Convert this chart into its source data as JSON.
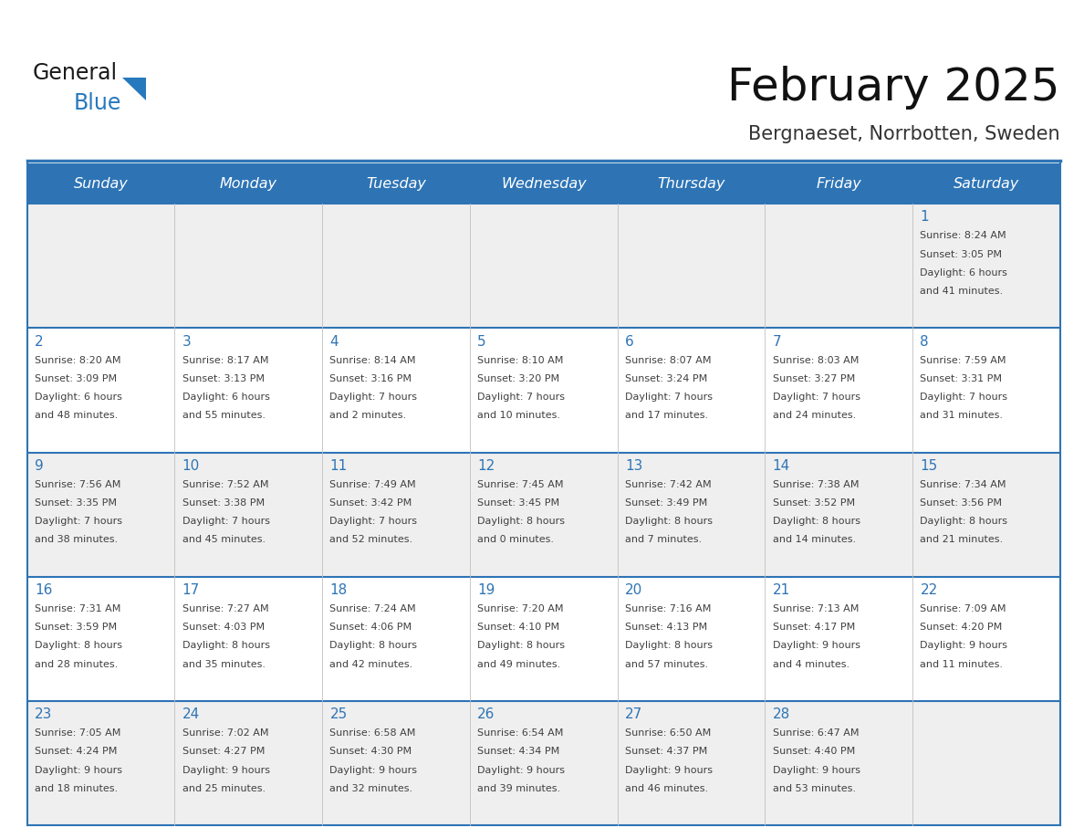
{
  "title": "February 2025",
  "subtitle": "Bergnaeset, Norrbotten, Sweden",
  "header_bg": "#2E74B5",
  "header_text_color": "#FFFFFF",
  "cell_bg_white": "#FFFFFF",
  "cell_bg_gray": "#EFEFEF",
  "row_line_color": "#2E74B5",
  "day_number_color": "#2E74B5",
  "info_text_color": "#404040",
  "separator_color": "#2E74B5",
  "days_of_week": [
    "Sunday",
    "Monday",
    "Tuesday",
    "Wednesday",
    "Thursday",
    "Friday",
    "Saturday"
  ],
  "weeks": [
    [
      {
        "day": 0,
        "info": ""
      },
      {
        "day": 0,
        "info": ""
      },
      {
        "day": 0,
        "info": ""
      },
      {
        "day": 0,
        "info": ""
      },
      {
        "day": 0,
        "info": ""
      },
      {
        "day": 0,
        "info": ""
      },
      {
        "day": 1,
        "info": "Sunrise: 8:24 AM\nSunset: 3:05 PM\nDaylight: 6 hours\nand 41 minutes."
      }
    ],
    [
      {
        "day": 2,
        "info": "Sunrise: 8:20 AM\nSunset: 3:09 PM\nDaylight: 6 hours\nand 48 minutes."
      },
      {
        "day": 3,
        "info": "Sunrise: 8:17 AM\nSunset: 3:13 PM\nDaylight: 6 hours\nand 55 minutes."
      },
      {
        "day": 4,
        "info": "Sunrise: 8:14 AM\nSunset: 3:16 PM\nDaylight: 7 hours\nand 2 minutes."
      },
      {
        "day": 5,
        "info": "Sunrise: 8:10 AM\nSunset: 3:20 PM\nDaylight: 7 hours\nand 10 minutes."
      },
      {
        "day": 6,
        "info": "Sunrise: 8:07 AM\nSunset: 3:24 PM\nDaylight: 7 hours\nand 17 minutes."
      },
      {
        "day": 7,
        "info": "Sunrise: 8:03 AM\nSunset: 3:27 PM\nDaylight: 7 hours\nand 24 minutes."
      },
      {
        "day": 8,
        "info": "Sunrise: 7:59 AM\nSunset: 3:31 PM\nDaylight: 7 hours\nand 31 minutes."
      }
    ],
    [
      {
        "day": 9,
        "info": "Sunrise: 7:56 AM\nSunset: 3:35 PM\nDaylight: 7 hours\nand 38 minutes."
      },
      {
        "day": 10,
        "info": "Sunrise: 7:52 AM\nSunset: 3:38 PM\nDaylight: 7 hours\nand 45 minutes."
      },
      {
        "day": 11,
        "info": "Sunrise: 7:49 AM\nSunset: 3:42 PM\nDaylight: 7 hours\nand 52 minutes."
      },
      {
        "day": 12,
        "info": "Sunrise: 7:45 AM\nSunset: 3:45 PM\nDaylight: 8 hours\nand 0 minutes."
      },
      {
        "day": 13,
        "info": "Sunrise: 7:42 AM\nSunset: 3:49 PM\nDaylight: 8 hours\nand 7 minutes."
      },
      {
        "day": 14,
        "info": "Sunrise: 7:38 AM\nSunset: 3:52 PM\nDaylight: 8 hours\nand 14 minutes."
      },
      {
        "day": 15,
        "info": "Sunrise: 7:34 AM\nSunset: 3:56 PM\nDaylight: 8 hours\nand 21 minutes."
      }
    ],
    [
      {
        "day": 16,
        "info": "Sunrise: 7:31 AM\nSunset: 3:59 PM\nDaylight: 8 hours\nand 28 minutes."
      },
      {
        "day": 17,
        "info": "Sunrise: 7:27 AM\nSunset: 4:03 PM\nDaylight: 8 hours\nand 35 minutes."
      },
      {
        "day": 18,
        "info": "Sunrise: 7:24 AM\nSunset: 4:06 PM\nDaylight: 8 hours\nand 42 minutes."
      },
      {
        "day": 19,
        "info": "Sunrise: 7:20 AM\nSunset: 4:10 PM\nDaylight: 8 hours\nand 49 minutes."
      },
      {
        "day": 20,
        "info": "Sunrise: 7:16 AM\nSunset: 4:13 PM\nDaylight: 8 hours\nand 57 minutes."
      },
      {
        "day": 21,
        "info": "Sunrise: 7:13 AM\nSunset: 4:17 PM\nDaylight: 9 hours\nand 4 minutes."
      },
      {
        "day": 22,
        "info": "Sunrise: 7:09 AM\nSunset: 4:20 PM\nDaylight: 9 hours\nand 11 minutes."
      }
    ],
    [
      {
        "day": 23,
        "info": "Sunrise: 7:05 AM\nSunset: 4:24 PM\nDaylight: 9 hours\nand 18 minutes."
      },
      {
        "day": 24,
        "info": "Sunrise: 7:02 AM\nSunset: 4:27 PM\nDaylight: 9 hours\nand 25 minutes."
      },
      {
        "day": 25,
        "info": "Sunrise: 6:58 AM\nSunset: 4:30 PM\nDaylight: 9 hours\nand 32 minutes."
      },
      {
        "day": 26,
        "info": "Sunrise: 6:54 AM\nSunset: 4:34 PM\nDaylight: 9 hours\nand 39 minutes."
      },
      {
        "day": 27,
        "info": "Sunrise: 6:50 AM\nSunset: 4:37 PM\nDaylight: 9 hours\nand 46 minutes."
      },
      {
        "day": 28,
        "info": "Sunrise: 6:47 AM\nSunset: 4:40 PM\nDaylight: 9 hours\nand 53 minutes."
      },
      {
        "day": 0,
        "info": ""
      }
    ]
  ],
  "logo_general_color": "#1a1a1a",
  "logo_blue_color": "#2779BD",
  "logo_triangle_color": "#2779BD",
  "figsize": [
    11.88,
    9.18
  ],
  "dpi": 100
}
